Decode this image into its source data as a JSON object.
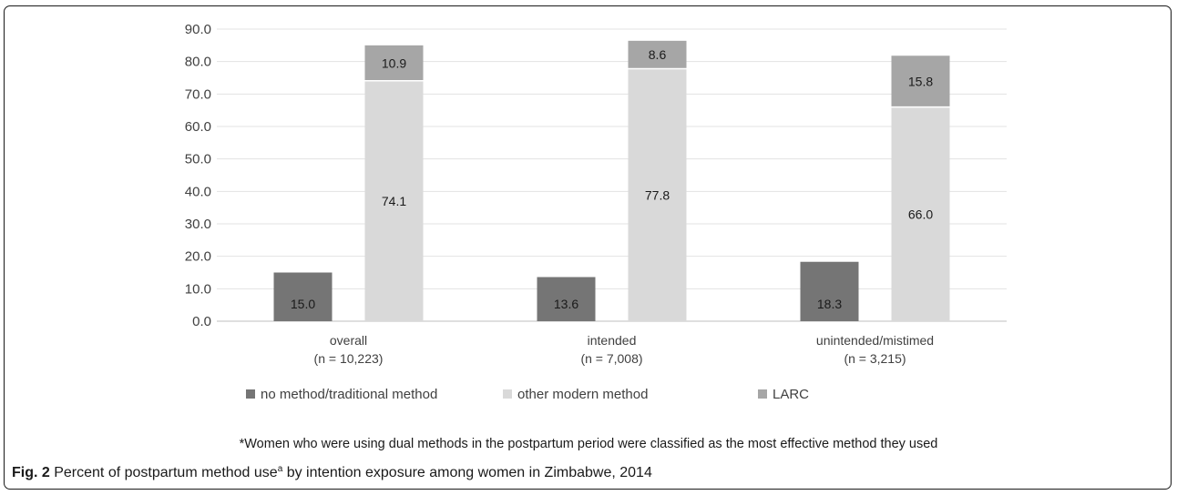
{
  "chart_data": {
    "type": "bar",
    "stacked": true,
    "categories": [
      "overall|(n = 10,223)",
      "intended|(n = 7,008)",
      "unintended/mistimed|(n = 3,215)"
    ],
    "ylim": [
      0,
      90
    ],
    "yticks": [
      "0.0",
      "10.0",
      "20.0",
      "30.0",
      "40.0",
      "50.0",
      "60.0",
      "70.0",
      "80.0",
      "90.0"
    ],
    "grid": true,
    "legend_position": "bottom-left",
    "series": [
      {
        "name": "no method/traditional method",
        "values": [
          15.0,
          13.6,
          18.3
        ],
        "labels": [
          "15.0",
          "13.6",
          "18.3"
        ],
        "color": "#757575",
        "stack": "a"
      },
      {
        "name": "other modern method",
        "values": [
          74.1,
          77.8,
          66.0
        ],
        "labels": [
          "74.1",
          "77.8",
          "66.0"
        ],
        "color": "#d9d9d9",
        "stack": "b"
      },
      {
        "name": "LARC",
        "values": [
          10.9,
          8.6,
          15.8
        ],
        "labels": [
          "10.9",
          "8.6",
          "15.8"
        ],
        "color": "#a6a6a6",
        "stack": "b"
      }
    ]
  },
  "footnote": "*Women who were using dual methods in the postpartum period were classified as the most effective method they used",
  "caption": {
    "label": "Fig. 2",
    "text_before": " Percent of postpartum method use",
    "superscript": "a",
    "text_after": " by intention exposure among women in Zimbabwe, 2014"
  }
}
